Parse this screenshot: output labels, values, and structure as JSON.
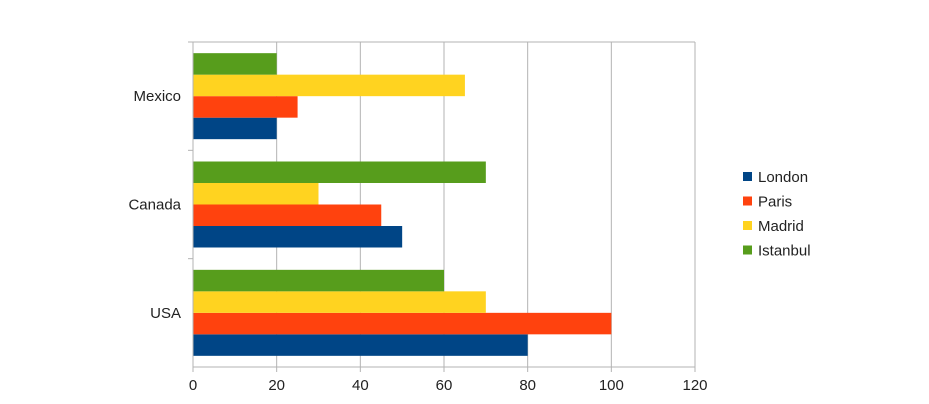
{
  "chart_data": {
    "type": "bar",
    "orientation": "horizontal",
    "categories": [
      "USA",
      "Canada",
      "Mexico"
    ],
    "series": [
      {
        "name": "London",
        "color": "#004586",
        "values": [
          80,
          50,
          20
        ]
      },
      {
        "name": "Paris",
        "color": "#ff420e",
        "values": [
          100,
          45,
          25
        ]
      },
      {
        "name": "Madrid",
        "color": "#ffd320",
        "values": [
          70,
          30,
          65
        ]
      },
      {
        "name": "Istanbul",
        "color": "#579d1c",
        "values": [
          60,
          70,
          20
        ]
      }
    ],
    "x_ticks": [
      "0",
      "20",
      "40",
      "60",
      "80",
      "100",
      "120"
    ],
    "xlim": [
      0,
      120
    ],
    "grid": "vertical",
    "legend_position": "right"
  }
}
